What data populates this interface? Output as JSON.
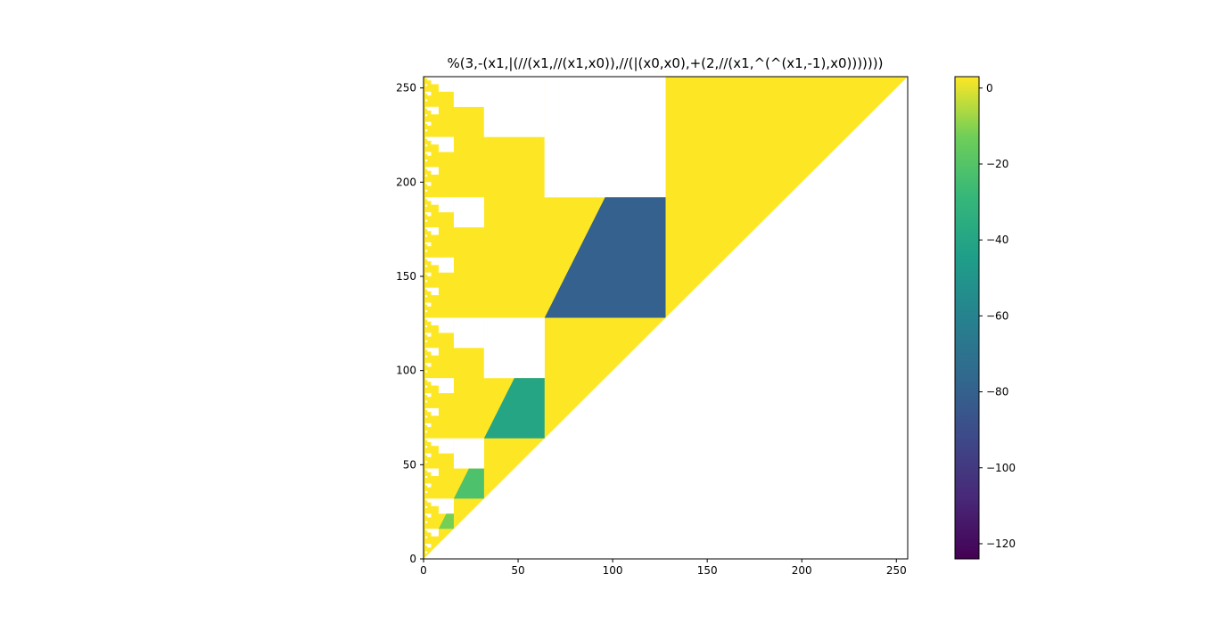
{
  "chart_data": {
    "type": "heatmap",
    "title": "%(3,-(x1,|(//(x1,//(x1,x0)),//(|(x0,x0),+(2,//(x1,^(^(x1,-1),x0)))))))",
    "xlabel": "",
    "ylabel": "",
    "xlim": [
      0,
      256
    ],
    "ylim": [
      0,
      256
    ],
    "x_ticks": [
      0,
      50,
      100,
      150,
      200,
      250
    ],
    "y_ticks": [
      0,
      50,
      100,
      150,
      200,
      250
    ],
    "colormap": "viridis",
    "color_range": [
      -124,
      3
    ],
    "colorbar_ticks": [
      0,
      -20,
      -40,
      -60,
      -80,
      -100,
      -120
    ],
    "grid": false,
    "description_regions": [
      {
        "kind": "yellow",
        "note": "values near 0..3 above-diagonal triangle"
      },
      {
        "x": [
          64,
          128
        ],
        "y": [
          128,
          192
        ],
        "approx_value": -80
      },
      {
        "x": [
          32,
          64
        ],
        "y": [
          64,
          96
        ],
        "approx_value": -40
      },
      {
        "x": [
          16,
          32
        ],
        "y": [
          32,
          48
        ],
        "approx_value": -22
      },
      {
        "x": [
          8,
          16
        ],
        "y": [
          16,
          24
        ],
        "approx_value": -12
      }
    ]
  }
}
